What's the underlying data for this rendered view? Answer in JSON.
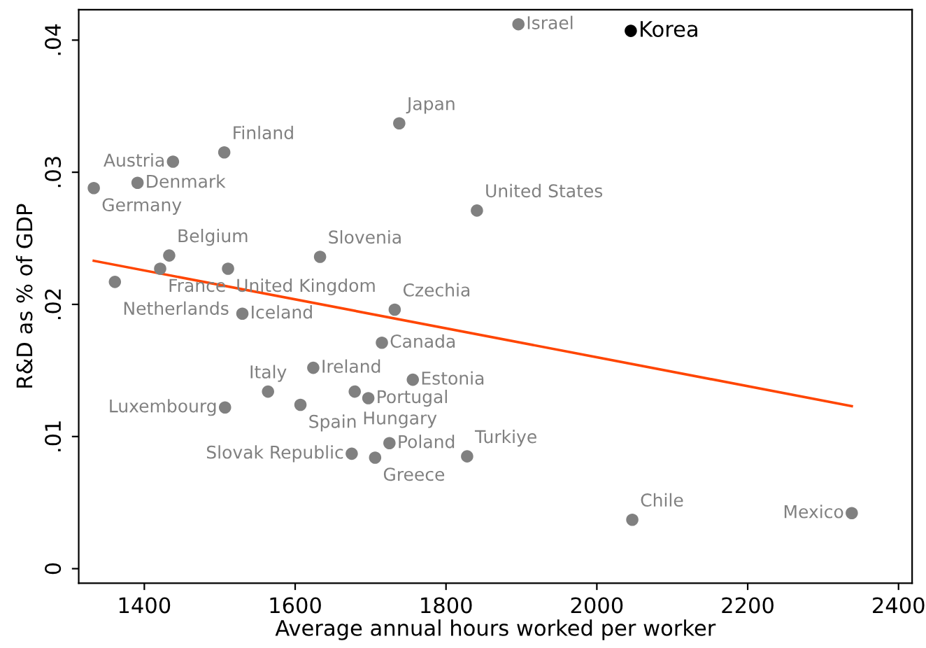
{
  "chart_data": {
    "type": "scatter",
    "xlabel": "Average annual hours worked per worker",
    "ylabel": "R&D as % of GDP",
    "xlim": [
      1313,
      2418
    ],
    "ylim": [
      -0.0011,
      0.0423
    ],
    "xticks": [
      1400,
      1600,
      1800,
      2000,
      2200,
      2400
    ],
    "yticks": [
      {
        "value": 0,
        "label": "0"
      },
      {
        "value": 0.01,
        "label": ".01"
      },
      {
        "value": 0.02,
        "label": ".02"
      },
      {
        "value": 0.03,
        "label": ".03"
      },
      {
        "value": 0.04,
        "label": ".04"
      }
    ],
    "grid": false,
    "legend": false,
    "series": [
      {
        "color": "#808080",
        "marker": "circle",
        "x": [
          1896,
          2045,
          1841,
          1333,
          1391,
          1438,
          1506,
          1738,
          1433,
          1421,
          1511,
          1361,
          1633,
          1530,
          1732,
          1715,
          1624,
          1756,
          1564,
          1679,
          1697,
          1607,
          1507,
          1725,
          1675,
          1706,
          1828,
          2047,
          2338
        ],
        "values": [
          0.0412,
          0.0407,
          0.0271,
          0.0288,
          0.0292,
          0.0308,
          0.0315,
          0.0337,
          0.0237,
          0.0227,
          0.0227,
          0.0217,
          0.0236,
          0.0193,
          0.0196,
          0.0171,
          0.0152,
          0.0143,
          0.0134,
          0.0134,
          0.0129,
          0.0124,
          0.0122,
          0.0095,
          0.0087,
          0.0084,
          0.0085,
          0.0037,
          0.0042
        ],
        "colors": [
          "#808080",
          "#000000",
          "#808080",
          "#808080",
          "#808080",
          "#808080",
          "#808080",
          "#808080",
          "#808080",
          "#808080",
          "#808080",
          "#808080",
          "#808080",
          "#808080",
          "#808080",
          "#808080",
          "#808080",
          "#808080",
          "#808080",
          "#808080",
          "#808080",
          "#808080",
          "#808080",
          "#808080",
          "#808080",
          "#808080",
          "#808080",
          "#808080",
          "#808080"
        ]
      },
      {
        "type": "line",
        "color": "#ff4500",
        "x": [
          1333,
          2338
        ],
        "values": [
          0.0233,
          0.0123
        ]
      }
    ],
    "annotations": [
      {
        "text": "Israel",
        "x": 1896,
        "y": 0.0412
      },
      {
        "text": "Korea",
        "x": 2045,
        "y": 0.0407
      },
      {
        "text": "United States",
        "x": 1841,
        "y": 0.0271
      },
      {
        "text": "Germany",
        "x": 1333,
        "y": 0.0288
      },
      {
        "text": "Denmark",
        "x": 1391,
        "y": 0.0292
      },
      {
        "text": "Austria",
        "x": 1438,
        "y": 0.0308
      },
      {
        "text": "Finland",
        "x": 1506,
        "y": 0.0315
      },
      {
        "text": "Japan",
        "x": 1738,
        "y": 0.0337
      },
      {
        "text": "Belgium",
        "x": 1433,
        "y": 0.0237
      },
      {
        "text": "France",
        "x": 1421,
        "y": 0.0227
      },
      {
        "text": "United Kingdom",
        "x": 1511,
        "y": 0.0227
      },
      {
        "text": "Netherlands",
        "x": 1361,
        "y": 0.0217
      },
      {
        "text": "Slovenia",
        "x": 1633,
        "y": 0.0236
      },
      {
        "text": "Iceland",
        "x": 1530,
        "y": 0.0193
      },
      {
        "text": "Czechia",
        "x": 1732,
        "y": 0.0196
      },
      {
        "text": "Canada",
        "x": 1715,
        "y": 0.0171
      },
      {
        "text": "Ireland",
        "x": 1624,
        "y": 0.0152
      },
      {
        "text": "Estonia",
        "x": 1756,
        "y": 0.0143
      },
      {
        "text": "Italy",
        "x": 1564,
        "y": 0.0134
      },
      {
        "text": "Hungary",
        "x": 1679,
        "y": 0.0134
      },
      {
        "text": "Portugal",
        "x": 1697,
        "y": 0.0129
      },
      {
        "text": "Spain",
        "x": 1607,
        "y": 0.0124
      },
      {
        "text": "Luxembourg",
        "x": 1507,
        "y": 0.0122
      },
      {
        "text": "Poland",
        "x": 1725,
        "y": 0.0095
      },
      {
        "text": "Slovak Republic",
        "x": 1675,
        "y": 0.0087
      },
      {
        "text": "Greece",
        "x": 1706,
        "y": 0.0084
      },
      {
        "text": "Turkiye",
        "x": 1828,
        "y": 0.0085
      },
      {
        "text": "Chile",
        "x": 2047,
        "y": 0.0037
      },
      {
        "text": "Mexico",
        "x": 2338,
        "y": 0.0042
      }
    ]
  }
}
